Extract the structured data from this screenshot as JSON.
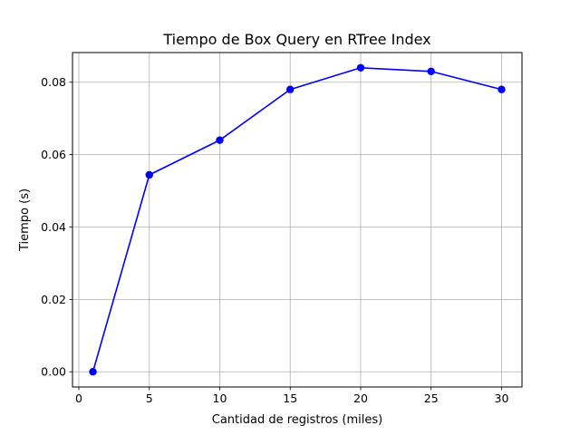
{
  "chart_data": {
    "type": "line",
    "title": "Tiempo de Box Query en RTree Index",
    "xlabel": "Cantidad de registros (miles)",
    "ylabel": "Tiempo (s)",
    "xlim": [
      -0.45,
      31.45
    ],
    "ylim": [
      -0.0042,
      0.0882
    ],
    "xticks": [
      0,
      5,
      10,
      15,
      20,
      25,
      30
    ],
    "yticks": [
      0.0,
      0.02,
      0.04,
      0.06,
      0.08
    ],
    "xtick_labels": [
      "0",
      "5",
      "10",
      "15",
      "20",
      "25",
      "30"
    ],
    "ytick_labels": [
      "0.00",
      "0.02",
      "0.04",
      "0.06",
      "0.08"
    ],
    "grid": true,
    "series": [
      {
        "color": "#0000ff",
        "marker": "circle",
        "x": [
          1,
          5,
          10,
          15,
          20,
          25,
          30
        ],
        "y": [
          0.0,
          0.0544,
          0.064,
          0.078,
          0.084,
          0.083,
          0.078
        ]
      }
    ]
  }
}
